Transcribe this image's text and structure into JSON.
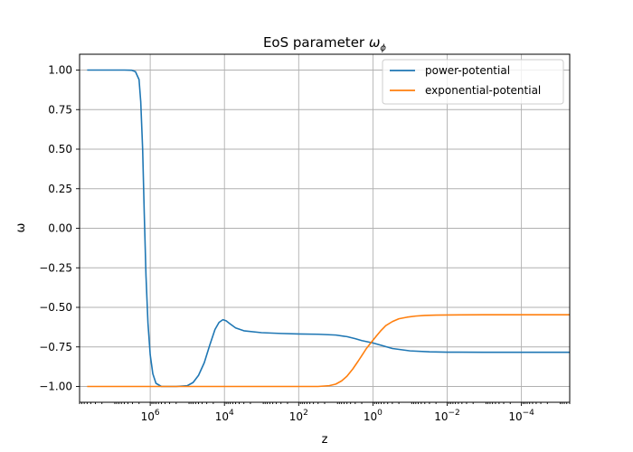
{
  "chart_data": {
    "type": "line",
    "title_main": "EoS parameter ",
    "title_symbol": "ω",
    "title_subscript": "ϕ",
    "xlabel": "z",
    "ylabel": "ω",
    "x_scale": "log",
    "x_axis_inverted": true,
    "xlim": [
      80000000,
      5e-06
    ],
    "ylim": [
      -1.1,
      1.1
    ],
    "grid": true,
    "legend_position": "upper right",
    "x_ticks": [
      {
        "value": 1000000,
        "base": "10",
        "exp": "6"
      },
      {
        "value": 10000,
        "base": "10",
        "exp": "4"
      },
      {
        "value": 100,
        "base": "10",
        "exp": "2"
      },
      {
        "value": 1,
        "base": "10",
        "exp": "0"
      },
      {
        "value": 0.01,
        "base": "10",
        "exp": "−2"
      },
      {
        "value": 0.0001,
        "base": "10",
        "exp": "−4"
      }
    ],
    "y_ticks": [
      {
        "value": 1.0,
        "label": "1.00"
      },
      {
        "value": 0.75,
        "label": "0.75"
      },
      {
        "value": 0.5,
        "label": "0.50"
      },
      {
        "value": 0.25,
        "label": "0.25"
      },
      {
        "value": 0.0,
        "label": "0.00"
      },
      {
        "value": -0.25,
        "label": "−0.25"
      },
      {
        "value": -0.5,
        "label": "−0.50"
      },
      {
        "value": -0.75,
        "label": "−0.75"
      },
      {
        "value": -1.0,
        "label": "−1.00"
      }
    ],
    "series": [
      {
        "name": "power-potential",
        "color": "#1f77b4",
        "points": [
          [
            50000000,
            1.0
          ],
          [
            10000000,
            1.0
          ],
          [
            5000000,
            1.0
          ],
          [
            3200000,
            0.999
          ],
          [
            2500000,
            0.99
          ],
          [
            2000000,
            0.94
          ],
          [
            1800000,
            0.8
          ],
          [
            1600000,
            0.5
          ],
          [
            1450000,
            0.1
          ],
          [
            1300000,
            -0.3
          ],
          [
            1150000,
            -0.6
          ],
          [
            1000000,
            -0.8
          ],
          [
            850000,
            -0.92
          ],
          [
            700000,
            -0.98
          ],
          [
            500000,
            -1.0
          ],
          [
            200000,
            -1.0
          ],
          [
            100000,
            -0.995
          ],
          [
            70000,
            -0.975
          ],
          [
            50000,
            -0.93
          ],
          [
            35000,
            -0.85
          ],
          [
            25000,
            -0.74
          ],
          [
            18000,
            -0.64
          ],
          [
            14000,
            -0.595
          ],
          [
            11000,
            -0.578
          ],
          [
            9000,
            -0.585
          ],
          [
            7000,
            -0.605
          ],
          [
            5000,
            -0.63
          ],
          [
            3000,
            -0.648
          ],
          [
            1000,
            -0.66
          ],
          [
            300,
            -0.665
          ],
          [
            100,
            -0.668
          ],
          [
            30,
            -0.67
          ],
          [
            10,
            -0.675
          ],
          [
            5,
            -0.685
          ],
          [
            3,
            -0.698
          ],
          [
            2,
            -0.71
          ],
          [
            1,
            -0.725
          ],
          [
            0.5,
            -0.745
          ],
          [
            0.3,
            -0.76
          ],
          [
            0.1,
            -0.775
          ],
          [
            0.03,
            -0.781
          ],
          [
            0.01,
            -0.783
          ],
          [
            0.001,
            -0.784
          ],
          [
            0.0001,
            -0.784
          ],
          [
            5e-06,
            -0.784
          ]
        ]
      },
      {
        "name": "exponential-potential",
        "color": "#ff7f0e",
        "points": [
          [
            50000000,
            -1.0
          ],
          [
            10000000,
            -1.0
          ],
          [
            1000000,
            -1.0
          ],
          [
            100000,
            -1.0
          ],
          [
            10000,
            -1.0
          ],
          [
            1000,
            -1.0
          ],
          [
            100,
            -1.0
          ],
          [
            30,
            -1.0
          ],
          [
            15,
            -0.995
          ],
          [
            10,
            -0.985
          ],
          [
            7,
            -0.965
          ],
          [
            5,
            -0.935
          ],
          [
            3.5,
            -0.89
          ],
          [
            2.5,
            -0.84
          ],
          [
            2,
            -0.805
          ],
          [
            1.5,
            -0.76
          ],
          [
            1.1,
            -0.72
          ],
          [
            0.8,
            -0.68
          ],
          [
            0.6,
            -0.645
          ],
          [
            0.45,
            -0.615
          ],
          [
            0.3,
            -0.59
          ],
          [
            0.2,
            -0.572
          ],
          [
            0.12,
            -0.562
          ],
          [
            0.07,
            -0.555
          ],
          [
            0.04,
            -0.551
          ],
          [
            0.02,
            -0.549
          ],
          [
            0.01,
            -0.548
          ],
          [
            0.001,
            -0.547
          ],
          [
            0.0001,
            -0.547
          ],
          [
            5e-06,
            -0.547
          ]
        ]
      }
    ]
  }
}
